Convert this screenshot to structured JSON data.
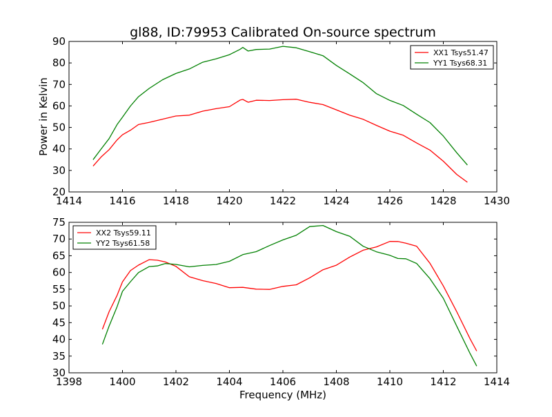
{
  "figure": {
    "title": "gl88, ID:79953 Calibrated On-source spectrum"
  },
  "chart_data": [
    {
      "type": "line",
      "title": "gl88, ID:79953 Calibrated On-source spectrum",
      "xlabel": "",
      "ylabel": "Power in Kelvin",
      "xlim": [
        1414,
        1430
      ],
      "ylim": [
        20,
        90
      ],
      "xticks": [
        1414,
        1416,
        1418,
        1420,
        1422,
        1424,
        1426,
        1428,
        1430
      ],
      "yticks": [
        20,
        30,
        40,
        50,
        60,
        70,
        80,
        90
      ],
      "grid": false,
      "legend": "top-right",
      "series": [
        {
          "name": "XX1 Tsys51.47",
          "color": "#ff0000",
          "x": [
            1414.9,
            1415.2,
            1415.5,
            1415.8,
            1416.0,
            1416.3,
            1416.6,
            1417.0,
            1417.5,
            1418.0,
            1418.5,
            1419.0,
            1419.5,
            1420.0,
            1420.4,
            1420.5,
            1420.7,
            1421.0,
            1421.5,
            1422.0,
            1422.5,
            1423.0,
            1423.5,
            1424.0,
            1424.5,
            1425.0,
            1425.5,
            1426.0,
            1426.5,
            1427.0,
            1427.5,
            1428.0,
            1428.5,
            1428.9
          ],
          "y": [
            32,
            36,
            40,
            44,
            46.5,
            49,
            51,
            52.5,
            54,
            55,
            56,
            57.5,
            58.5,
            60,
            62.5,
            63,
            62,
            62.3,
            62.7,
            63,
            62.8,
            62,
            60.5,
            58,
            56,
            53.5,
            51,
            48.5,
            46,
            43,
            39.5,
            34,
            28.5,
            24.5
          ]
        },
        {
          "name": "YY1 Tsys68.31",
          "color": "#008000",
          "x": [
            1414.9,
            1415.2,
            1415.5,
            1415.8,
            1416.0,
            1416.3,
            1416.6,
            1417.0,
            1417.5,
            1418.0,
            1418.5,
            1419.0,
            1419.5,
            1420.0,
            1420.4,
            1420.5,
            1420.7,
            1421.0,
            1421.5,
            1422.0,
            1422.5,
            1423.0,
            1423.5,
            1424.0,
            1424.5,
            1425.0,
            1425.5,
            1426.0,
            1426.5,
            1427.0,
            1427.5,
            1428.0,
            1428.5,
            1428.9
          ],
          "y": [
            35,
            40,
            45,
            51,
            55,
            60,
            64,
            68.5,
            72,
            75,
            77.5,
            80,
            82,
            84,
            86,
            87.5,
            85.5,
            86,
            86.8,
            87.5,
            87,
            85.5,
            83,
            79,
            75,
            70.5,
            66,
            62.5,
            60,
            56.5,
            52,
            46,
            38.5,
            32.5
          ]
        }
      ]
    },
    {
      "type": "line",
      "title": "",
      "xlabel": "Frequency (MHz)",
      "ylabel": "",
      "xlim": [
        1398,
        1414
      ],
      "ylim": [
        30,
        75
      ],
      "xticks": [
        1398,
        1400,
        1402,
        1404,
        1406,
        1408,
        1410,
        1412,
        1414
      ],
      "yticks": [
        30,
        35,
        40,
        45,
        50,
        55,
        60,
        65,
        70,
        75
      ],
      "grid": false,
      "legend": "top-left",
      "series": [
        {
          "name": "XX2 Tsys59.11",
          "color": "#ff0000",
          "x": [
            1399.25,
            1399.5,
            1399.8,
            1400.0,
            1400.3,
            1400.6,
            1401.0,
            1401.3,
            1401.6,
            1402.0,
            1402.5,
            1403.0,
            1403.5,
            1404.0,
            1404.5,
            1405.0,
            1405.5,
            1406.0,
            1406.5,
            1407.0,
            1407.5,
            1408.0,
            1408.5,
            1409.0,
            1409.5,
            1410.0,
            1410.3,
            1410.6,
            1411.0,
            1411.5,
            1412.0,
            1412.5,
            1413.0,
            1413.25
          ],
          "y": [
            43,
            48,
            53.5,
            57,
            60.5,
            62.5,
            63.5,
            63.8,
            63.3,
            61.5,
            59,
            57.5,
            56.5,
            55.8,
            55.3,
            55,
            55.2,
            55.5,
            56.5,
            58.5,
            60.5,
            62.5,
            64.5,
            66.5,
            68,
            69,
            69.3,
            69,
            67.5,
            63,
            56,
            48,
            40.5,
            36.5
          ]
        },
        {
          "name": "YY2 Tsys61.58",
          "color": "#008000",
          "x": [
            1399.25,
            1399.5,
            1399.8,
            1400.0,
            1400.3,
            1400.6,
            1401.0,
            1401.3,
            1401.6,
            1402.0,
            1402.5,
            1403.0,
            1403.5,
            1404.0,
            1404.5,
            1405.0,
            1405.5,
            1406.0,
            1406.5,
            1407.0,
            1407.5,
            1408.0,
            1408.5,
            1409.0,
            1409.5,
            1410.0,
            1410.3,
            1410.6,
            1411.0,
            1411.5,
            1412.0,
            1412.5,
            1413.0,
            1413.25
          ],
          "y": [
            38.5,
            44,
            50,
            54,
            57.5,
            60,
            61.5,
            62.3,
            62.5,
            62.3,
            62,
            61.8,
            62.5,
            63.5,
            65,
            66.5,
            68,
            69.5,
            71.5,
            73.5,
            74,
            72.5,
            70.5,
            68,
            66.3,
            64.8,
            64.5,
            64,
            62.5,
            58.5,
            52,
            44,
            36,
            32
          ]
        }
      ]
    }
  ]
}
